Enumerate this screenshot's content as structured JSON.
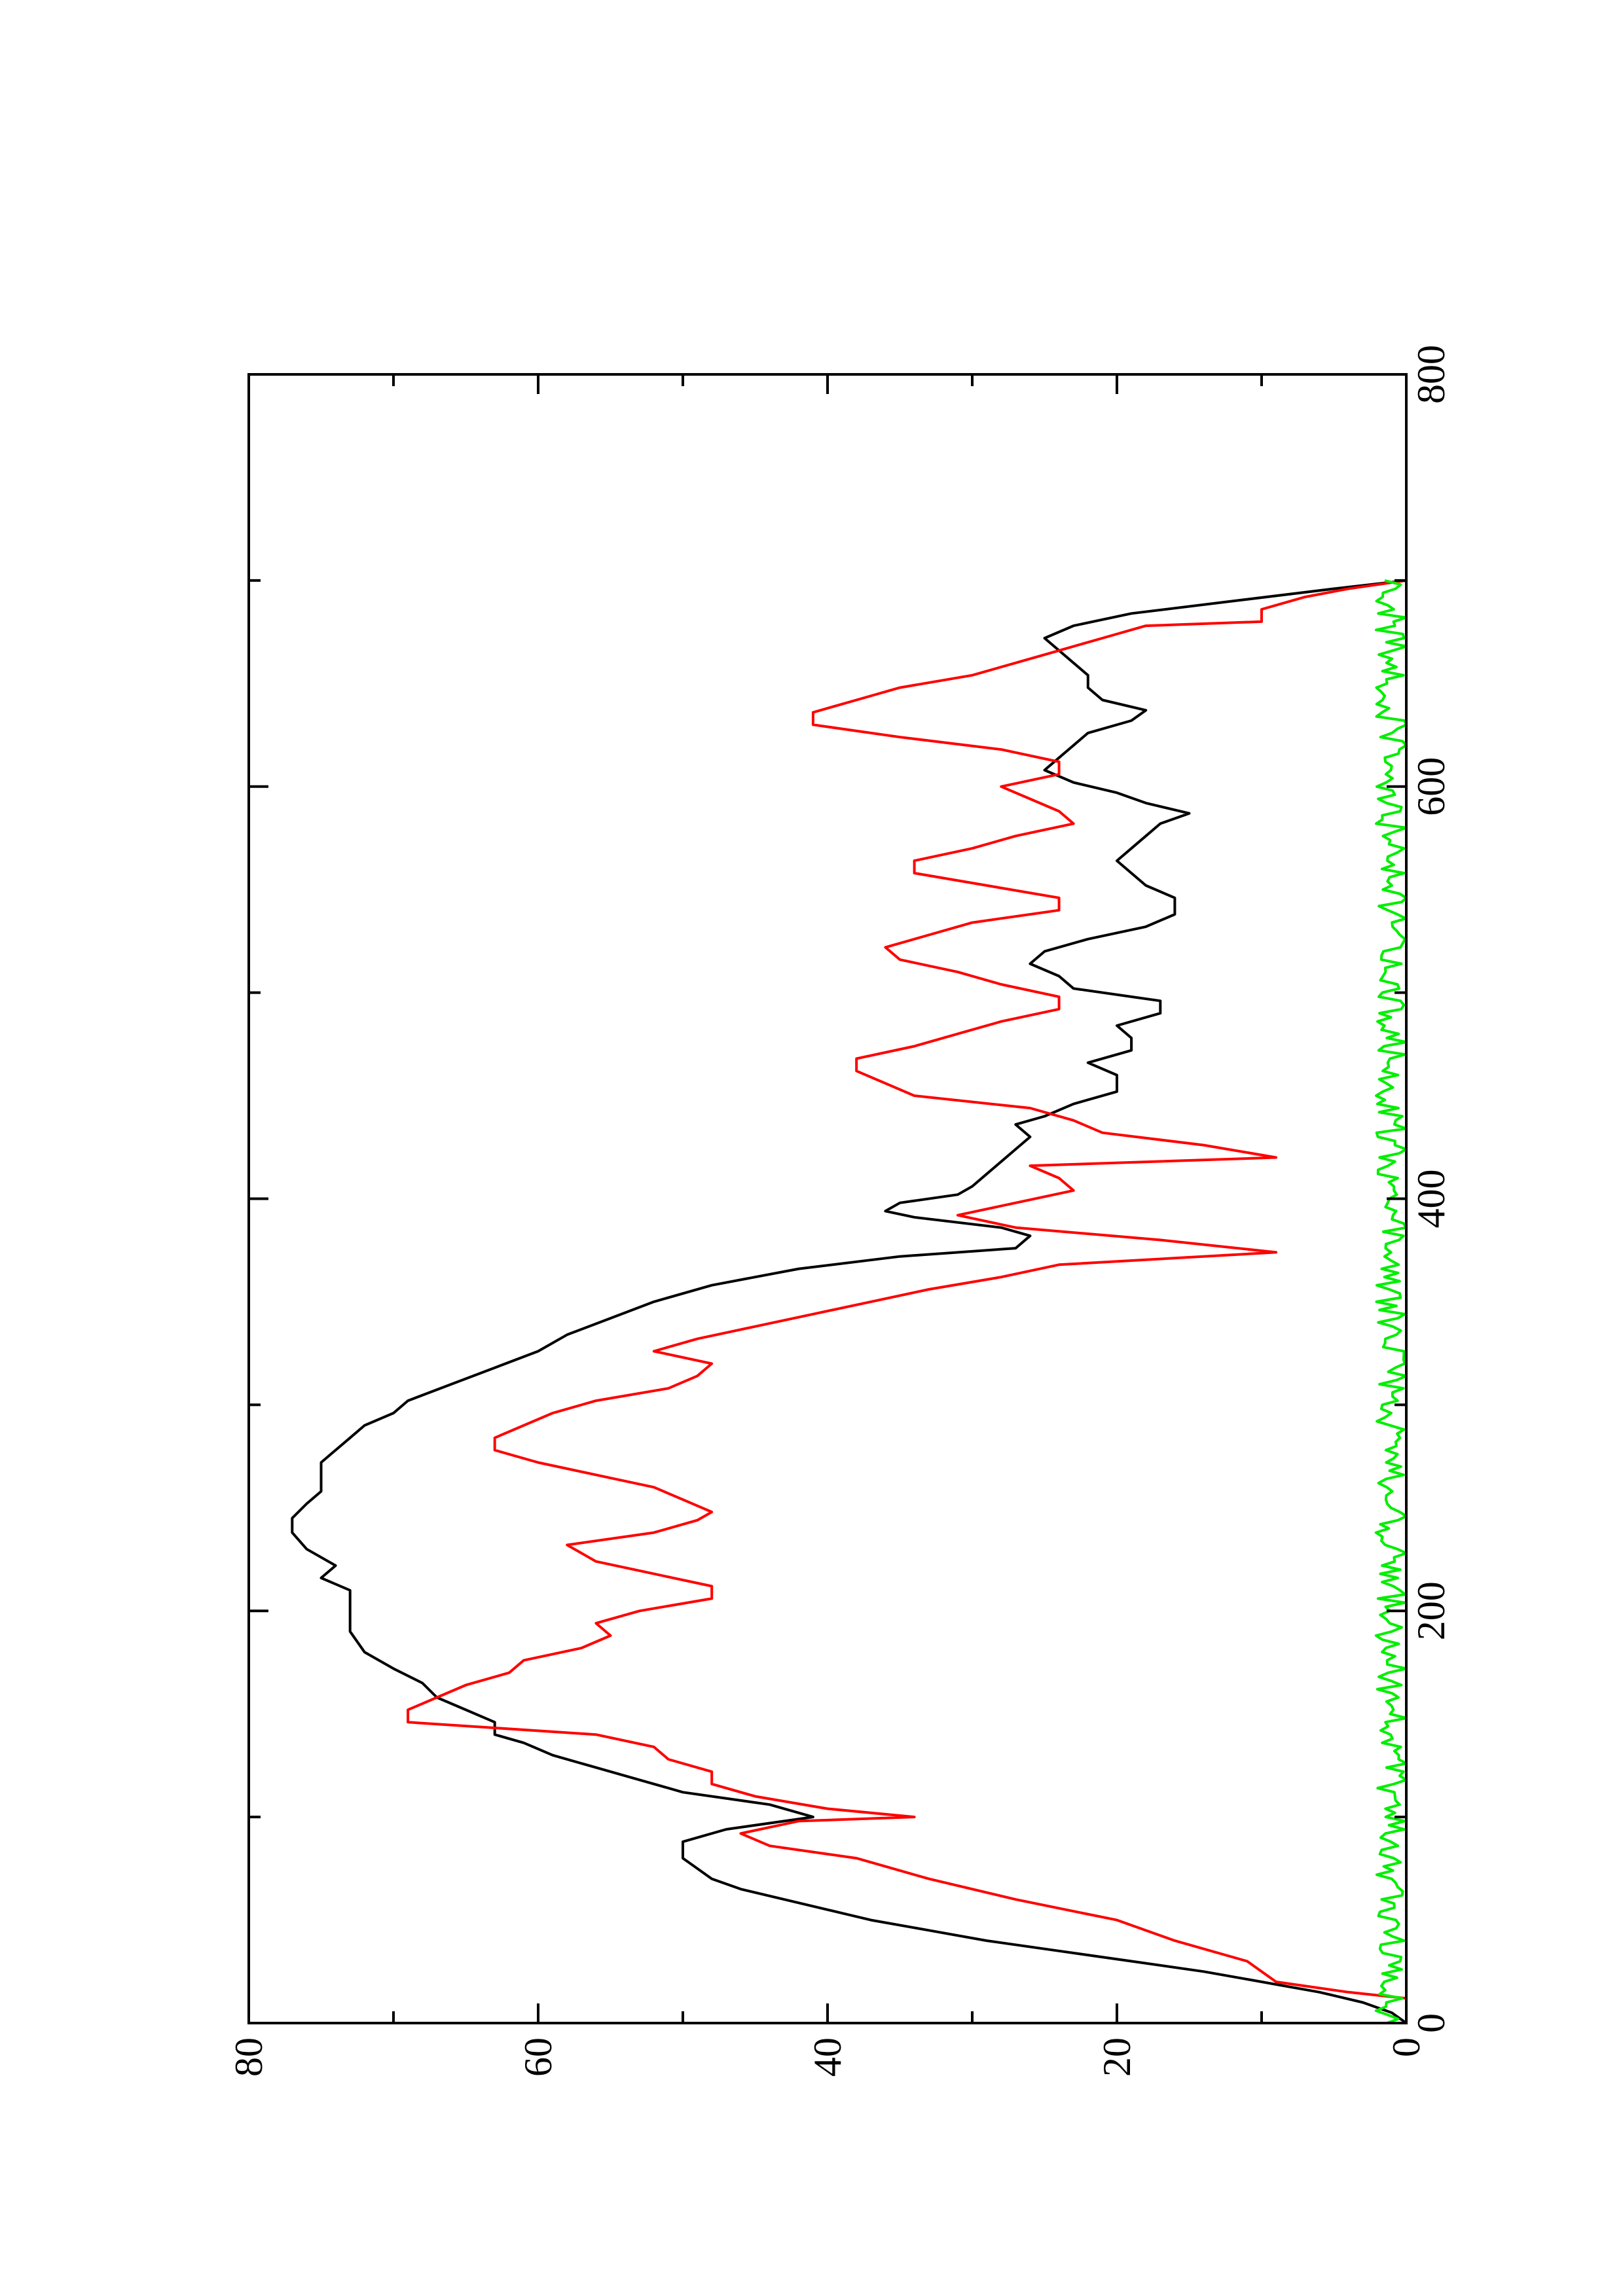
{
  "chart_data": {
    "type": "line",
    "orientation": "rotated 90 degrees counter-clockwise (x axis runs bottom to top)",
    "title": "",
    "xlabel": "",
    "ylabel": "",
    "xlim": [
      0,
      800
    ],
    "ylim": [
      0,
      80
    ],
    "x_ticks": [
      0,
      200,
      400,
      600,
      800
    ],
    "x_tick_labels": [
      "0",
      "200",
      "400",
      "600",
      "800"
    ],
    "x_minor_ticks": [
      100,
      300,
      500,
      700
    ],
    "y_ticks": [
      0,
      20,
      40,
      60,
      80
    ],
    "y_tick_labels": [
      "0",
      "20",
      "40",
      "60",
      "80"
    ],
    "y_minor_ticks": [
      10,
      30,
      50,
      70
    ],
    "grid": false,
    "legend": "none",
    "series": [
      {
        "color": "#000000",
        "points": [
          [
            0,
            0
          ],
          [
            5,
            1
          ],
          [
            10,
            3
          ],
          [
            15,
            6
          ],
          [
            20,
            10
          ],
          [
            25,
            14
          ],
          [
            30,
            19
          ],
          [
            35,
            24
          ],
          [
            40,
            29
          ],
          [
            45,
            33
          ],
          [
            50,
            37
          ],
          [
            55,
            40
          ],
          [
            60,
            43
          ],
          [
            65,
            46
          ],
          [
            70,
            48
          ],
          [
            80,
            50
          ],
          [
            88,
            50
          ],
          [
            94,
            47
          ],
          [
            100,
            41
          ],
          [
            106,
            44
          ],
          [
            112,
            50
          ],
          [
            118,
            53
          ],
          [
            124,
            56
          ],
          [
            130,
            59
          ],
          [
            136,
            61
          ],
          [
            140,
            63
          ],
          [
            146,
            63
          ],
          [
            152,
            65
          ],
          [
            158,
            67
          ],
          [
            165,
            68
          ],
          [
            172,
            70
          ],
          [
            180,
            72
          ],
          [
            190,
            73
          ],
          [
            200,
            73
          ],
          [
            210,
            73
          ],
          [
            216,
            75
          ],
          [
            222,
            74
          ],
          [
            230,
            76
          ],
          [
            238,
            77
          ],
          [
            245,
            77
          ],
          [
            252,
            76
          ],
          [
            258,
            75
          ],
          [
            264,
            75
          ],
          [
            272,
            75
          ],
          [
            278,
            74
          ],
          [
            284,
            73
          ],
          [
            290,
            72
          ],
          [
            296,
            70
          ],
          [
            302,
            69
          ],
          [
            310,
            66
          ],
          [
            318,
            63
          ],
          [
            326,
            60
          ],
          [
            334,
            58
          ],
          [
            342,
            55
          ],
          [
            350,
            52
          ],
          [
            358,
            48
          ],
          [
            366,
            42
          ],
          [
            372,
            35
          ],
          [
            376,
            27
          ],
          [
            382,
            26
          ],
          [
            386,
            28
          ],
          [
            391,
            34
          ],
          [
            394,
            36
          ],
          [
            398,
            35
          ],
          [
            402,
            31
          ],
          [
            406,
            30
          ],
          [
            412,
            29
          ],
          [
            418,
            28
          ],
          [
            424,
            27
          ],
          [
            430,
            26
          ],
          [
            436,
            27
          ],
          [
            440,
            25
          ],
          [
            446,
            23
          ],
          [
            452,
            20
          ],
          [
            460,
            20
          ],
          [
            466,
            22
          ],
          [
            472,
            19
          ],
          [
            478,
            19
          ],
          [
            484,
            20
          ],
          [
            490,
            17
          ],
          [
            496,
            17
          ],
          [
            502,
            23
          ],
          [
            508,
            24
          ],
          [
            514,
            26
          ],
          [
            520,
            25
          ],
          [
            526,
            22
          ],
          [
            532,
            18
          ],
          [
            538,
            16
          ],
          [
            546,
            16
          ],
          [
            552,
            18
          ],
          [
            558,
            19
          ],
          [
            564,
            20
          ],
          [
            570,
            19
          ],
          [
            576,
            18
          ],
          [
            582,
            17
          ],
          [
            587,
            15
          ],
          [
            592,
            18
          ],
          [
            597,
            20
          ],
          [
            602,
            23
          ],
          [
            608,
            25
          ],
          [
            614,
            24
          ],
          [
            620,
            23
          ],
          [
            626,
            22
          ],
          [
            632,
            19
          ],
          [
            637,
            18
          ],
          [
            642,
            21
          ],
          [
            648,
            22
          ],
          [
            654,
            22
          ],
          [
            660,
            23
          ],
          [
            666,
            24
          ],
          [
            672,
            25
          ],
          [
            678,
            23
          ],
          [
            684,
            19
          ],
          [
            690,
            12
          ],
          [
            696,
            5
          ],
          [
            700,
            0
          ]
        ]
      },
      {
        "color": "#ff0000",
        "points": [
          [
            0,
            0
          ],
          [
            12,
            0
          ],
          [
            15,
            4
          ],
          [
            20,
            9
          ],
          [
            30,
            11
          ],
          [
            40,
            16
          ],
          [
            50,
            20
          ],
          [
            60,
            27
          ],
          [
            70,
            33
          ],
          [
            80,
            38
          ],
          [
            86,
            44
          ],
          [
            92,
            46
          ],
          [
            98,
            42
          ],
          [
            100,
            34
          ],
          [
            104,
            40
          ],
          [
            110,
            45
          ],
          [
            116,
            48
          ],
          [
            122,
            48
          ],
          [
            128,
            51
          ],
          [
            134,
            52
          ],
          [
            140,
            56
          ],
          [
            146,
            69
          ],
          [
            152,
            69
          ],
          [
            158,
            67
          ],
          [
            164,
            65
          ],
          [
            170,
            62
          ],
          [
            176,
            61
          ],
          [
            182,
            57
          ],
          [
            188,
            55
          ],
          [
            194,
            56
          ],
          [
            200,
            53
          ],
          [
            206,
            48
          ],
          [
            212,
            48
          ],
          [
            218,
            52
          ],
          [
            224,
            56
          ],
          [
            232,
            58
          ],
          [
            238,
            52
          ],
          [
            244,
            49
          ],
          [
            248,
            48
          ],
          [
            254,
            50
          ],
          [
            260,
            52
          ],
          [
            266,
            56
          ],
          [
            272,
            60
          ],
          [
            278,
            63
          ],
          [
            284,
            63
          ],
          [
            290,
            61
          ],
          [
            296,
            59
          ],
          [
            302,
            56
          ],
          [
            308,
            51
          ],
          [
            314,
            49
          ],
          [
            320,
            48
          ],
          [
            326,
            52
          ],
          [
            332,
            49
          ],
          [
            338,
            45
          ],
          [
            344,
            41
          ],
          [
            350,
            37
          ],
          [
            356,
            33
          ],
          [
            362,
            28
          ],
          [
            368,
            24
          ],
          [
            374,
            9
          ],
          [
            380,
            17
          ],
          [
            386,
            27
          ],
          [
            392,
            31
          ],
          [
            398,
            27
          ],
          [
            404,
            23
          ],
          [
            410,
            24
          ],
          [
            416,
            26
          ],
          [
            420,
            9
          ],
          [
            426,
            14
          ],
          [
            432,
            21
          ],
          [
            438,
            23
          ],
          [
            444,
            26
          ],
          [
            450,
            34
          ],
          [
            456,
            36
          ],
          [
            462,
            38
          ],
          [
            468,
            38
          ],
          [
            474,
            34
          ],
          [
            480,
            31
          ],
          [
            486,
            28
          ],
          [
            492,
            24
          ],
          [
            498,
            24
          ],
          [
            504,
            28
          ],
          [
            510,
            31
          ],
          [
            516,
            35
          ],
          [
            522,
            36
          ],
          [
            528,
            33
          ],
          [
            534,
            30
          ],
          [
            540,
            24
          ],
          [
            546,
            24
          ],
          [
            552,
            29
          ],
          [
            558,
            34
          ],
          [
            564,
            34
          ],
          [
            570,
            30
          ],
          [
            576,
            27
          ],
          [
            582,
            23
          ],
          [
            588,
            24
          ],
          [
            594,
            26
          ],
          [
            600,
            28
          ],
          [
            606,
            24
          ],
          [
            612,
            24
          ],
          [
            618,
            28
          ],
          [
            624,
            35
          ],
          [
            630,
            41
          ],
          [
            636,
            41
          ],
          [
            642,
            38
          ],
          [
            648,
            35
          ],
          [
            654,
            30
          ],
          [
            660,
            27
          ],
          [
            666,
            24
          ],
          [
            672,
            21
          ],
          [
            678,
            18
          ],
          [
            680,
            10
          ],
          [
            686,
            10
          ],
          [
            692,
            7
          ],
          [
            696,
            4
          ],
          [
            700,
            0
          ]
        ]
      },
      {
        "color": "#00ee00",
        "generator": "noise",
        "x_range": [
          0,
          700
        ],
        "y_range": [
          0,
          2.5
        ],
        "mean": 1.0
      }
    ]
  }
}
